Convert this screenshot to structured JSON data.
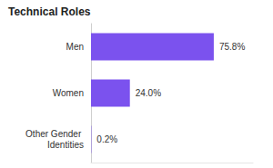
{
  "chart_data": {
    "type": "bar",
    "title": "Technical Roles",
    "orientation": "horizontal",
    "categories": [
      "Men",
      "Women",
      "Other Gender Identities"
    ],
    "values": [
      75.8,
      24.0,
      0.2
    ],
    "value_labels": [
      "75.8%",
      "24.0%",
      "0.2%"
    ],
    "color": "#7b52ee",
    "xlim": [
      0,
      100
    ],
    "grid": false,
    "data_labels": true,
    "tick_labels": "y"
  }
}
